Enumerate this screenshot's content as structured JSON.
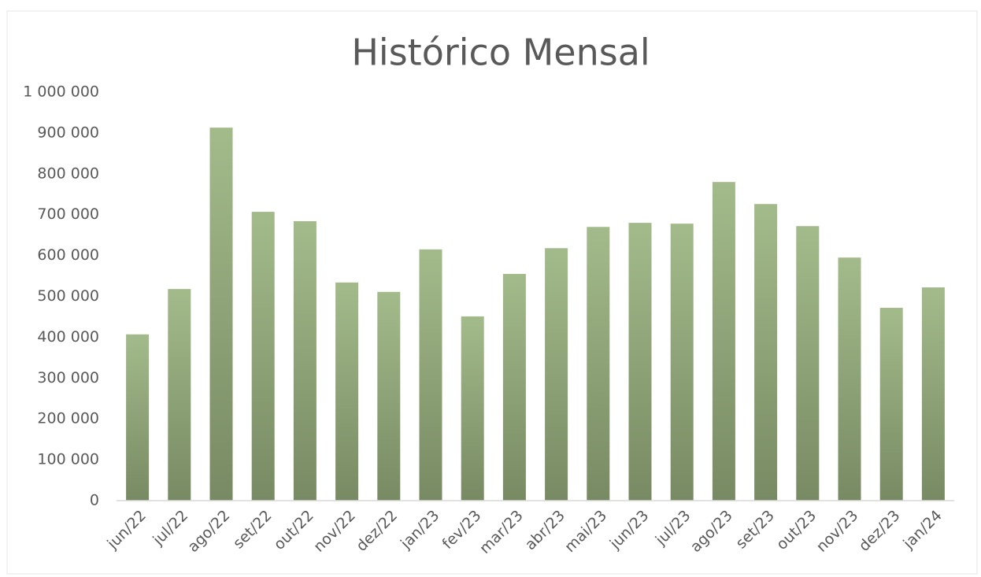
{
  "chart_data": {
    "type": "bar",
    "title": "Histórico Mensal",
    "categories": [
      "jun/22",
      "jul/22",
      "ago/22",
      "set/22",
      "out/22",
      "nov/22",
      "dez/22",
      "jan/23",
      "fev/23",
      "mar/23",
      "abr/23",
      "mai/23",
      "jun/23",
      "jul/23",
      "ago/23",
      "set/23",
      "out/23",
      "nov/23",
      "dez/23",
      "jan/24"
    ],
    "values": [
      407000,
      518000,
      913000,
      707000,
      684000,
      534000,
      511000,
      615000,
      451000,
      555000,
      618000,
      670000,
      680000,
      678000,
      780000,
      726000,
      672000,
      595000,
      472000,
      522000
    ],
    "gradient": [
      "#a3bb8b",
      "#788a63"
    ],
    "ylim": [
      0,
      1000000
    ],
    "yticks": [
      0,
      {
        "value": 100000,
        "label": "100 000"
      },
      {
        "value": 200000,
        "label": "200 000"
      },
      {
        "value": 300000,
        "label": "300 000"
      },
      {
        "value": 400000,
        "label": "400 000"
      },
      {
        "value": 500000,
        "label": "500 000"
      },
      {
        "value": 600000,
        "label": "600 000"
      },
      {
        "value": 700000,
        "label": "700 000"
      },
      {
        "value": 800000,
        "label": "800 000"
      },
      {
        "value": 900000,
        "label": "900 000"
      },
      {
        "value": 1000000,
        "label": "1 000 000"
      }
    ],
    "grid": false
  }
}
